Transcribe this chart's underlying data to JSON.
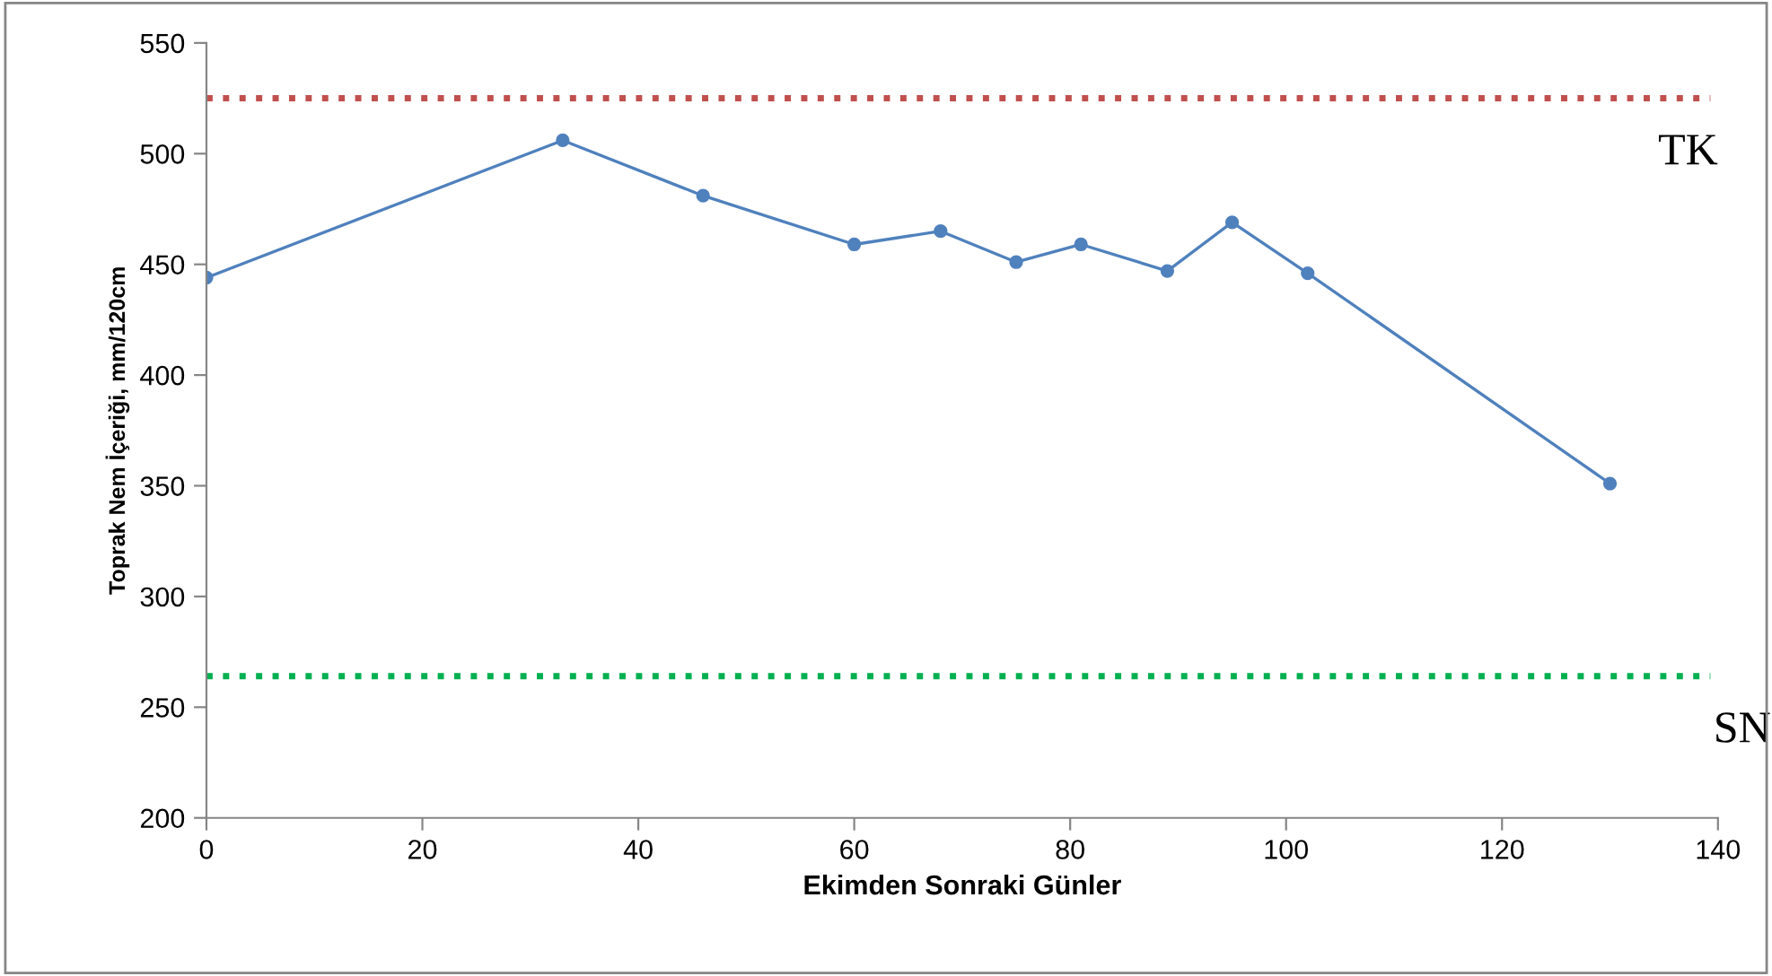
{
  "chart_data": {
    "type": "line",
    "xlabel": "Ekimden Sonraki Günler",
    "ylabel": "Toprak Nem İçeriği, mm/120cm",
    "x": [
      0,
      33,
      46,
      60,
      68,
      75,
      81,
      89,
      95,
      102,
      130
    ],
    "series": [
      {
        "color": "#4f81bd",
        "values": [
          444,
          506,
          481,
          459,
          465,
          451,
          459,
          447,
          469,
          446,
          351
        ]
      }
    ],
    "xlim": [
      0,
      140
    ],
    "xticks": [
      0,
      20,
      40,
      60,
      80,
      100,
      120,
      140
    ],
    "ylim": [
      200,
      550
    ],
    "yticks": [
      200,
      250,
      300,
      350,
      400,
      450,
      500,
      550
    ],
    "grid": false,
    "legend": false,
    "marker": "circle",
    "line_style": "solid",
    "ref_lines": [
      {
        "axis": "y",
        "value": 525,
        "label": "TK",
        "color": "#c0504d",
        "line_style": "dotted"
      },
      {
        "axis": "y",
        "value": 264,
        "label": "SN",
        "color": "#00b050",
        "line_style": "dotted"
      }
    ]
  }
}
